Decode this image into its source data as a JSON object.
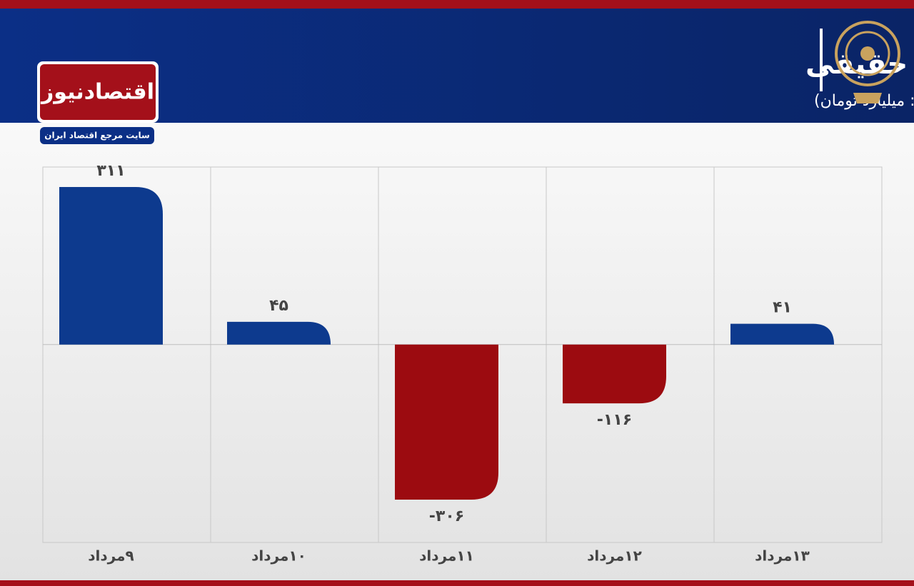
{
  "chart_data": {
    "type": "bar",
    "title": "روند هفته ورود و خروج پول‌های حقیقی",
    "subtitle": "(واحد: میلیارد تومان)",
    "logo_text": "اقتصادنیوز",
    "logo_tagline": "سایت مرجع اقتصاد ایران",
    "categories": [
      "۹مرداد",
      "۱۰مرداد",
      "۱۱مرداد",
      "۱۲مرداد",
      "۱۳مرداد"
    ],
    "values": [
      311,
      45,
      -306,
      -116,
      41
    ],
    "value_labels": [
      "۳۱۱",
      "۴۵",
      "-۳۰۶",
      "-۱۱۶",
      "۴۱"
    ],
    "positive_color": "#0d3a8e",
    "negative_color": "#9c0b10",
    "grid": true
  }
}
